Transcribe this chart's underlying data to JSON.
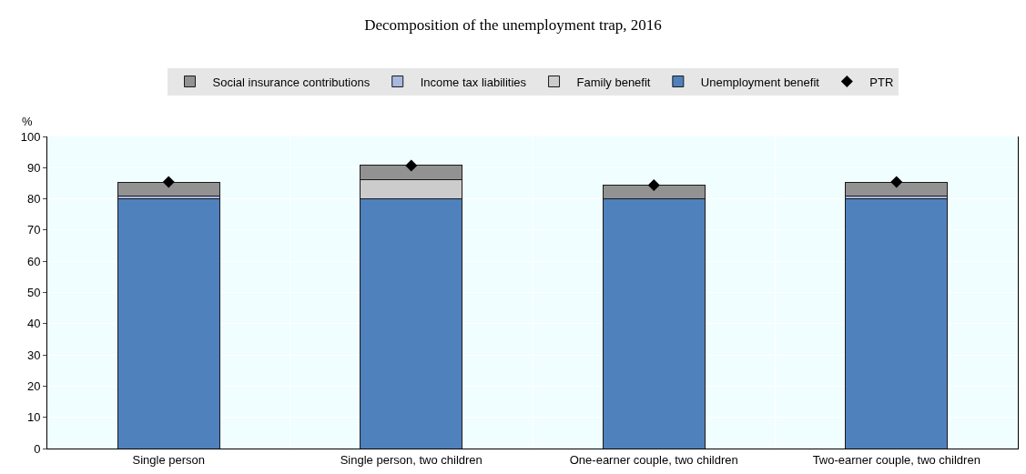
{
  "chart_data": {
    "type": "bar",
    "title": "Decomposition of the unemployment trap, 2016",
    "ylabel": "%",
    "categories": [
      "Single person",
      "Single person, two children",
      "One-earner couple, two children",
      "Two-earner couple, two children"
    ],
    "stacked": true,
    "ylim": [
      0,
      100
    ],
    "yticks": [
      0,
      10,
      20,
      30,
      40,
      50,
      60,
      70,
      80,
      90,
      100
    ],
    "grid": "y",
    "legend": "top",
    "series": [
      {
        "name": "Unemployment benefit",
        "color": "#4f81bd",
        "values": [
          80,
          80,
          80,
          80
        ]
      },
      {
        "name": "Family benefit",
        "color": "#cccccc",
        "values": [
          0,
          6.2,
          0,
          0
        ]
      },
      {
        "name": "Income tax liabilities",
        "color": "#a9b8e0",
        "values": [
          0.9,
          0,
          0,
          0.9
        ]
      },
      {
        "name": "Social insurance contributions",
        "color": "#929292",
        "values": [
          4.5,
          4.5,
          4.4,
          4.5
        ]
      },
      {
        "name": "PTR",
        "type": "scatter",
        "marker": "diamond",
        "color": "#000000",
        "values": [
          85.4,
          90.7,
          84.4,
          85.4
        ]
      }
    ]
  }
}
